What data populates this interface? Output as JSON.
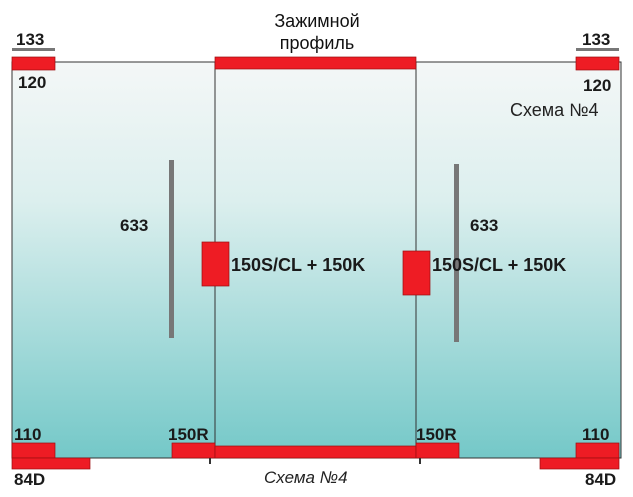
{
  "diagram": {
    "clamp_title_line1": "Зажимной",
    "clamp_title_line2": "профиль",
    "schema_label_top": "Схема №4",
    "schema_caption_bottom": "Схема №4",
    "codes": {
      "top_left_bar": "133",
      "top_left_patch": "120",
      "top_right_bar": "133",
      "top_right_patch": "120",
      "handle_left": "633",
      "handle_right": "633",
      "lock_left": "150S/CL + 150K",
      "lock_right": "150S/CL + 150K",
      "bottom_left_patch": "110",
      "bottom_left_door_patch": "150R",
      "bottom_right_door_patch": "150R",
      "bottom_right_patch": "110",
      "floor_left": "84D",
      "floor_right": "84D"
    },
    "colors": {
      "glass_top": "#f4f7f7",
      "glass_bottom": "#74c8c8",
      "fitting_red": "#ee1c24",
      "handle_gray": "#777777",
      "outline": "#333333"
    }
  }
}
